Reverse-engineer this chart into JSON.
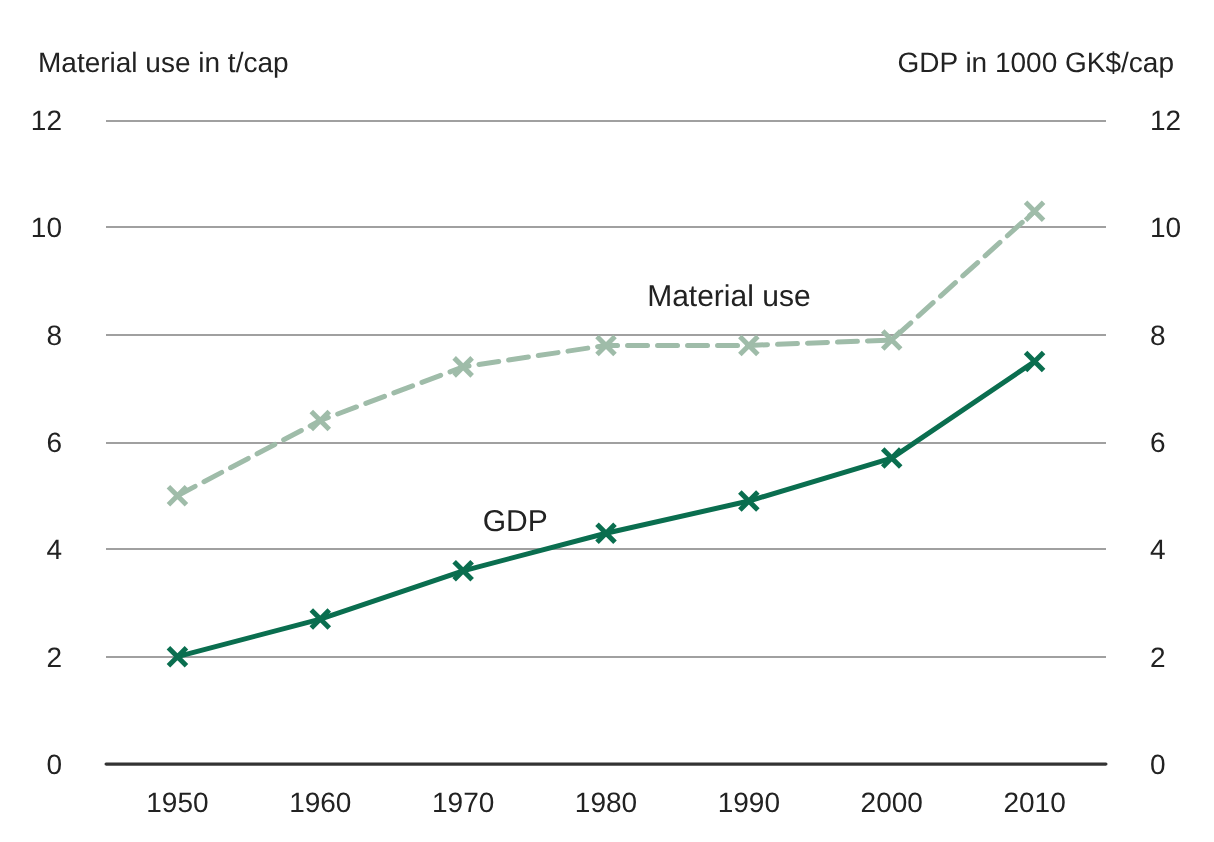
{
  "chart_data": {
    "type": "line",
    "ylabel": "Material use in t/cap",
    "y2label": "GDP in 1000 GK$/cap",
    "categories": [
      "1950",
      "1960",
      "1970",
      "1980",
      "1990",
      "2000",
      "2010"
    ],
    "series": [
      {
        "name": "Material use",
        "color": "#9fbca9",
        "line_style": "dashed",
        "marker": "cross",
        "values": [
          5.0,
          6.4,
          7.4,
          7.8,
          7.8,
          7.9,
          10.3
        ]
      },
      {
        "name": "GDP",
        "color": "#0a6e4f",
        "line_style": "solid",
        "marker": "cross",
        "axis": "y2",
        "values": [
          2.0,
          2.7,
          3.6,
          4.3,
          4.9,
          5.7,
          7.5
        ]
      }
    ],
    "ylim": [
      0,
      12
    ],
    "yticks": [
      0,
      2,
      4,
      6,
      8,
      10,
      12
    ],
    "y2lim": [
      0,
      12
    ],
    "y2ticks": [
      0,
      2,
      4,
      6,
      8,
      10,
      12
    ],
    "grid": "y"
  }
}
